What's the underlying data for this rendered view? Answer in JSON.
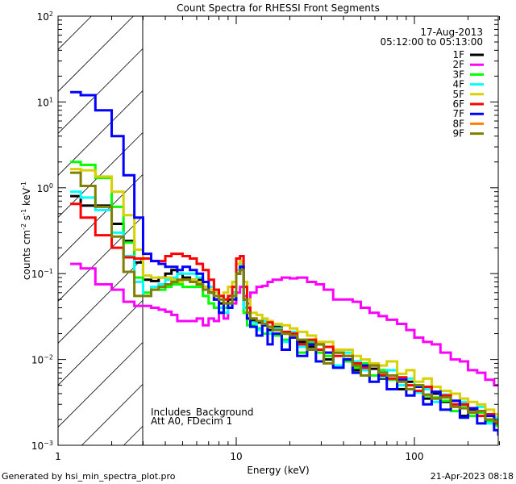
{
  "chart_data": {
    "type": "line",
    "title": "Count Spectra for RHESSI Front Segments",
    "date": "17-Aug-2013",
    "time_range": "05:12:00 to 05:13:00",
    "xlabel": "Energy (keV)",
    "ylabel": {
      "base": "counts cm",
      "e1": "-2",
      "s": " s",
      "e2": "-1",
      "k": " keV",
      "e3": "-1"
    },
    "xscale": "log",
    "yscale": "log",
    "xlim": [
      1,
      300
    ],
    "ylim": [
      0.001,
      100
    ],
    "x_ticks": [
      "1",
      "10",
      "100"
    ],
    "y_ticks": [
      {
        "base": "10",
        "exp": "2"
      },
      {
        "base": "10",
        "exp": "1"
      },
      {
        "base": "10",
        "exp": "0"
      },
      {
        "base": "10",
        "exp": "−1"
      },
      {
        "base": "10",
        "exp": "−2"
      },
      {
        "base": "10",
        "exp": "−3"
      }
    ],
    "shaded_region_keV": [
      1,
      3
    ],
    "annotations": [
      "Includes_Background",
      "Att A0, FDecim 1"
    ],
    "legend_placement": "top-right",
    "energies": [
      1.17,
      1.34,
      1.62,
      2.0,
      2.33,
      2.68,
      3.0,
      3.33,
      3.67,
      4.0,
      4.33,
      4.67,
      5.0,
      5.5,
      6.0,
      6.5,
      7.0,
      7.5,
      8.0,
      8.5,
      9.0,
      9.5,
      10.0,
      10.5,
      11.0,
      11.5,
      12,
      13,
      14,
      15,
      16,
      18,
      20,
      22,
      25,
      28,
      31,
      35,
      40,
      45,
      50,
      56,
      63,
      70,
      80,
      90,
      100,
      112,
      125,
      140,
      160,
      180,
      200,
      225,
      250,
      280,
      300
    ],
    "series": [
      {
        "name": "1F",
        "color": "#000000",
        "values": [
          0.8,
          0.62,
          0.62,
          0.38,
          0.24,
          0.135,
          0.085,
          0.082,
          0.09,
          0.1,
          0.11,
          0.1,
          0.09,
          0.085,
          0.085,
          0.07,
          0.06,
          0.05,
          0.045,
          0.04,
          0.05,
          0.06,
          0.1,
          0.12,
          0.04,
          0.03,
          0.028,
          0.027,
          0.026,
          0.022,
          0.024,
          0.02,
          0.018,
          0.016,
          0.014,
          0.015,
          0.01,
          0.012,
          0.01,
          0.0075,
          0.0085,
          0.0078,
          0.006,
          0.0065,
          0.0045,
          0.0055,
          0.0048,
          0.0035,
          0.004,
          0.0032,
          0.0033,
          0.0022,
          0.0026,
          0.0025,
          0.002,
          0.0019,
          0.0017
        ]
      },
      {
        "name": "2F",
        "color": "#ff00ff",
        "values": [
          0.13,
          0.115,
          0.075,
          0.065,
          0.047,
          0.042,
          0.042,
          0.04,
          0.038,
          0.036,
          0.033,
          0.028,
          0.028,
          0.028,
          0.03,
          0.025,
          0.03,
          0.028,
          0.035,
          0.03,
          0.04,
          0.045,
          0.06,
          0.07,
          0.055,
          0.045,
          0.06,
          0.07,
          0.072,
          0.08,
          0.085,
          0.09,
          0.088,
          0.09,
          0.08,
          0.075,
          0.065,
          0.05,
          0.05,
          0.047,
          0.04,
          0.035,
          0.032,
          0.029,
          0.026,
          0.022,
          0.018,
          0.016,
          0.015,
          0.012,
          0.01,
          0.0095,
          0.0075,
          0.007,
          0.0058,
          0.005,
          0.005
        ]
      },
      {
        "name": "3F",
        "color": "#00ff00",
        "values": [
          2.0,
          1.85,
          1.3,
          0.6,
          0.23,
          0.09,
          0.06,
          0.065,
          0.065,
          0.07,
          0.075,
          0.075,
          0.07,
          0.07,
          0.07,
          0.055,
          0.045,
          0.04,
          0.035,
          0.04,
          0.045,
          0.055,
          0.1,
          0.12,
          0.035,
          0.025,
          0.025,
          0.023,
          0.02,
          0.024,
          0.019,
          0.017,
          0.02,
          0.012,
          0.016,
          0.012,
          0.011,
          0.012,
          0.0095,
          0.008,
          0.009,
          0.0065,
          0.0075,
          0.0058,
          0.0055,
          0.0045,
          0.005,
          0.0038,
          0.0036,
          0.0033,
          0.0025,
          0.0029,
          0.0022,
          0.0024,
          0.0019,
          0.0017,
          0.0016
        ]
      },
      {
        "name": "4F",
        "color": "#00ffff",
        "values": [
          0.9,
          0.77,
          0.55,
          0.3,
          0.16,
          0.08,
          0.055,
          0.07,
          0.075,
          0.085,
          0.09,
          0.1,
          0.1,
          0.1,
          0.09,
          0.08,
          0.07,
          0.06,
          0.04,
          0.035,
          0.04,
          0.06,
          0.11,
          0.13,
          0.04,
          0.03,
          0.027,
          0.022,
          0.028,
          0.02,
          0.023,
          0.016,
          0.021,
          0.014,
          0.015,
          0.013,
          0.012,
          0.0085,
          0.012,
          0.0095,
          0.0075,
          0.0085,
          0.0062,
          0.0075,
          0.005,
          0.006,
          0.0041,
          0.0045,
          0.0032,
          0.0039,
          0.0029,
          0.0032,
          0.0024,
          0.0028,
          0.0018,
          0.0021,
          0.0017
        ]
      },
      {
        "name": "5F",
        "color": "#d8d000",
        "values": [
          1.65,
          1.6,
          1.35,
          0.9,
          0.48,
          0.19,
          0.095,
          0.09,
          0.09,
          0.09,
          0.085,
          0.08,
          0.085,
          0.085,
          0.08,
          0.07,
          0.065,
          0.06,
          0.055,
          0.06,
          0.07,
          0.08,
          0.13,
          0.14,
          0.08,
          0.05,
          0.035,
          0.033,
          0.03,
          0.028,
          0.026,
          0.025,
          0.023,
          0.021,
          0.019,
          0.016,
          0.016,
          0.013,
          0.013,
          0.011,
          0.01,
          0.009,
          0.0085,
          0.0095,
          0.0068,
          0.0075,
          0.0055,
          0.006,
          0.0048,
          0.0043,
          0.004,
          0.0035,
          0.0032,
          0.003,
          0.0026,
          0.0023,
          0.0021
        ]
      },
      {
        "name": "6F",
        "color": "#ff0000",
        "values": [
          0.65,
          0.45,
          0.28,
          0.2,
          0.155,
          0.15,
          0.15,
          0.14,
          0.14,
          0.16,
          0.17,
          0.17,
          0.16,
          0.15,
          0.13,
          0.11,
          0.085,
          0.065,
          0.055,
          0.05,
          0.055,
          0.07,
          0.15,
          0.16,
          0.07,
          0.04,
          0.03,
          0.028,
          0.025,
          0.027,
          0.022,
          0.021,
          0.02,
          0.015,
          0.017,
          0.013,
          0.014,
          0.011,
          0.011,
          0.009,
          0.008,
          0.0085,
          0.0065,
          0.006,
          0.0062,
          0.005,
          0.0043,
          0.0048,
          0.0035,
          0.0038,
          0.003,
          0.003,
          0.0027,
          0.0022,
          0.0023,
          0.0018,
          0.0017
        ]
      },
      {
        "name": "7F",
        "color": "#0000ff",
        "values": [
          13,
          12,
          8,
          4,
          1.4,
          0.45,
          0.17,
          0.14,
          0.13,
          0.12,
          0.12,
          0.11,
          0.12,
          0.11,
          0.1,
          0.08,
          0.06,
          0.05,
          0.035,
          0.045,
          0.04,
          0.05,
          0.1,
          0.12,
          0.05,
          0.03,
          0.024,
          0.019,
          0.025,
          0.015,
          0.02,
          0.013,
          0.018,
          0.011,
          0.015,
          0.0095,
          0.012,
          0.008,
          0.01,
          0.007,
          0.0085,
          0.0055,
          0.007,
          0.0045,
          0.0058,
          0.0038,
          0.0048,
          0.003,
          0.0042,
          0.0026,
          0.0033,
          0.0021,
          0.0027,
          0.0018,
          0.0022,
          0.0015,
          0.0013
        ]
      },
      {
        "name": "8F",
        "color": "#ff8000",
        "values": []
      },
      {
        "name": "9F",
        "color": "#808000",
        "values": [
          1.5,
          1.05,
          0.6,
          0.27,
          0.105,
          0.055,
          0.055,
          0.065,
          0.07,
          0.075,
          0.08,
          0.085,
          0.085,
          0.08,
          0.075,
          0.065,
          0.06,
          0.055,
          0.05,
          0.045,
          0.045,
          0.055,
          0.1,
          0.11,
          0.05,
          0.035,
          0.03,
          0.028,
          0.026,
          0.024,
          0.022,
          0.02,
          0.019,
          0.017,
          0.013,
          0.015,
          0.009,
          0.012,
          0.011,
          0.0085,
          0.0065,
          0.0085,
          0.007,
          0.0065,
          0.0055,
          0.0045,
          0.005,
          0.0039,
          0.0035,
          0.0036,
          0.0028,
          0.0027,
          0.0024,
          0.0025,
          0.002,
          0.0019,
          0.0017
        ]
      }
    ]
  },
  "footer": {
    "generated_by": "Generated by hsi_min_spectra_plot.pro",
    "timestamp": "21-Apr-2023 08:18"
  }
}
